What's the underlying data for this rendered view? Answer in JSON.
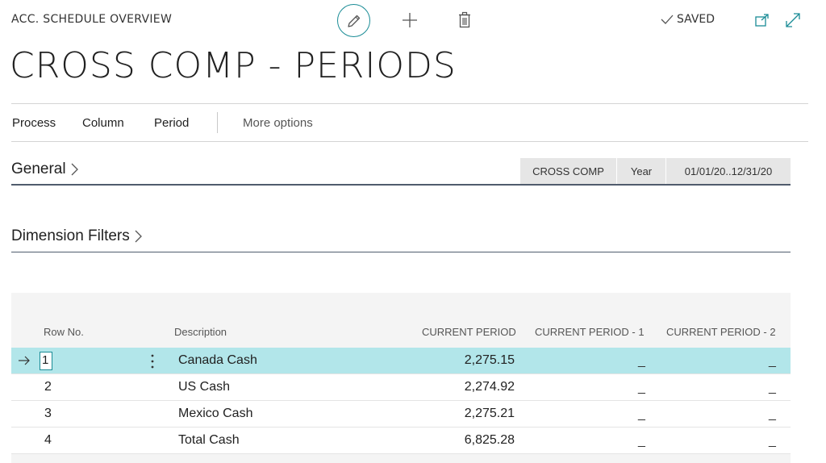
{
  "header": {
    "caption": "ACC. SCHEDULE OVERVIEW",
    "saved_label": "SAVED",
    "page_title": "CROSS COMP - PERIODS"
  },
  "icons": {
    "edit": "pencil-icon",
    "new": "plus-icon",
    "delete": "trash-icon",
    "saved": "checkmark-icon",
    "open_new_window": "open-in-new-window-icon",
    "expand": "expand-icon",
    "chevron": "chevron-right-icon",
    "row_indicator": "arrow-right-icon",
    "row_menu": "vertical-ellipsis-icon"
  },
  "actions": {
    "process": "Process",
    "column": "Column",
    "period": "Period",
    "more": "More options"
  },
  "sections": {
    "general": "General",
    "dimension_filters": "Dimension Filters"
  },
  "summary": {
    "layout": "CROSS COMP",
    "period_type": "Year",
    "date_filter": "01/01/20..12/31/20"
  },
  "grid": {
    "headers": {
      "row_no": "Row No.",
      "description": "Description",
      "current": "CURRENT PERIOD",
      "current_1": "CURRENT PERIOD - 1",
      "current_2": "CURRENT PERIOD - 2"
    },
    "rows": [
      {
        "row_no": "1",
        "description": "Canada Cash",
        "current": "2,275.15",
        "current_1": "_",
        "current_2": "_"
      },
      {
        "row_no": "2",
        "description": "US Cash",
        "current": "2,274.92",
        "current_1": "_",
        "current_2": "_"
      },
      {
        "row_no": "3",
        "description": "Mexico Cash",
        "current": "2,275.21",
        "current_1": "_",
        "current_2": "_"
      },
      {
        "row_no": "4",
        "description": "Total Cash",
        "current": "6,825.28",
        "current_1": "_",
        "current_2": "_"
      }
    ]
  },
  "colors": {
    "accent": "#1a8c96",
    "selected_row": "#b2e6ea",
    "summary_bg": "#e6e6e6"
  }
}
